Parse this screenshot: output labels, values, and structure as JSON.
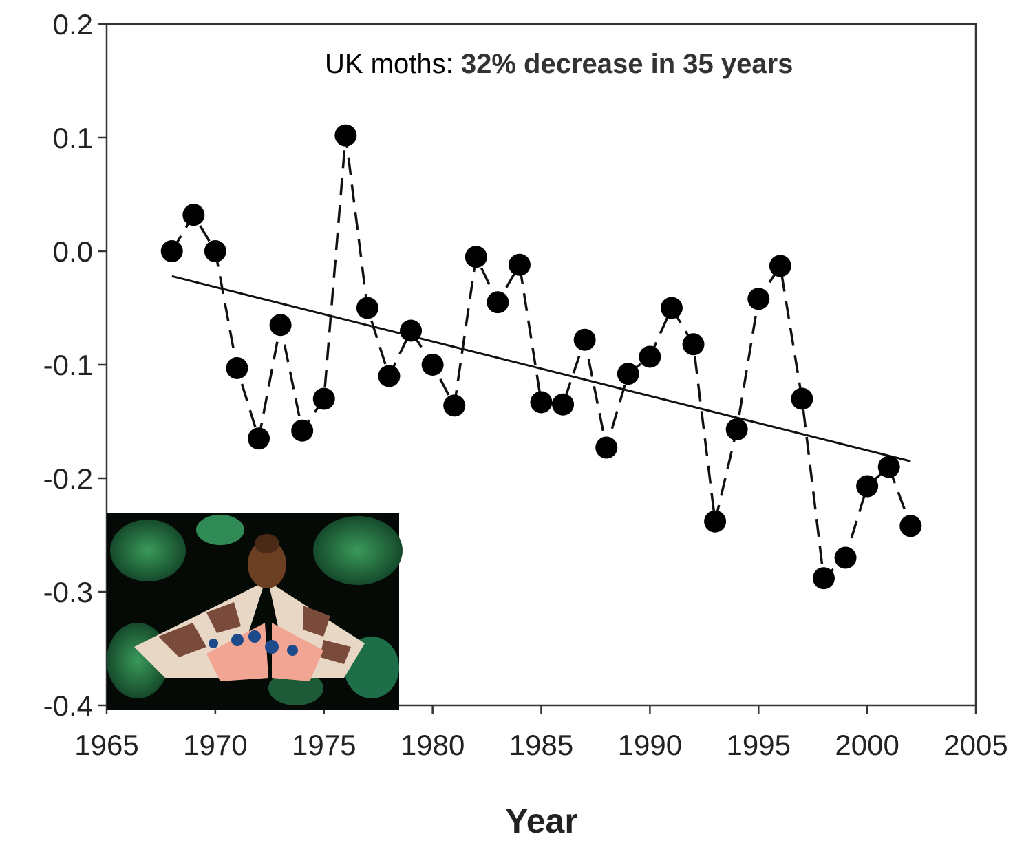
{
  "chart_data": {
    "type": "line",
    "title": "",
    "xlabel": "Year",
    "ylabel": "",
    "xlim": [
      1965,
      2005
    ],
    "ylim": [
      -0.4,
      0.2
    ],
    "x_ticks": [
      "1965",
      "1970",
      "1975",
      "1980",
      "1985",
      "1990",
      "1995",
      "2000",
      "2005"
    ],
    "y_ticks": [
      "0.2",
      "0.1",
      "0.0",
      "-0.1",
      "-0.2",
      "-0.3",
      "-0.4"
    ],
    "annotation": {
      "prefix": "UK moths: ",
      "emphasis": "32% decrease in 35 years"
    },
    "series": [
      {
        "style": "dashed-line-with-markers",
        "x": [
          1968,
          1969,
          1970,
          1971,
          1972,
          1973,
          1974,
          1975,
          1976,
          1977,
          1978,
          1979,
          1980,
          1981,
          1982,
          1983,
          1984,
          1985,
          1986,
          1987,
          1988,
          1989,
          1990,
          1991,
          1992,
          1993,
          1994,
          1995,
          1996,
          1997,
          1998,
          1999,
          2000,
          2001,
          2002
        ],
        "y": [
          0.0,
          0.032,
          0.0,
          -0.103,
          -0.165,
          -0.065,
          -0.158,
          -0.13,
          0.102,
          -0.05,
          -0.11,
          -0.07,
          -0.1,
          -0.136,
          -0.005,
          -0.045,
          -0.012,
          -0.133,
          -0.135,
          -0.078,
          -0.173,
          -0.108,
          -0.093,
          -0.05,
          -0.082,
          -0.238,
          -0.157,
          -0.042,
          -0.013,
          -0.13,
          -0.288,
          -0.27,
          -0.207,
          -0.19,
          -0.242
        ]
      },
      {
        "style": "trend-line",
        "x": [
          1968,
          2002
        ],
        "y": [
          -0.022,
          -0.185
        ]
      }
    ],
    "inset_image": "garden-tiger-moth-photo",
    "colors": {
      "markers": "#000000",
      "lines": "#111111",
      "axes": "#333333"
    }
  }
}
